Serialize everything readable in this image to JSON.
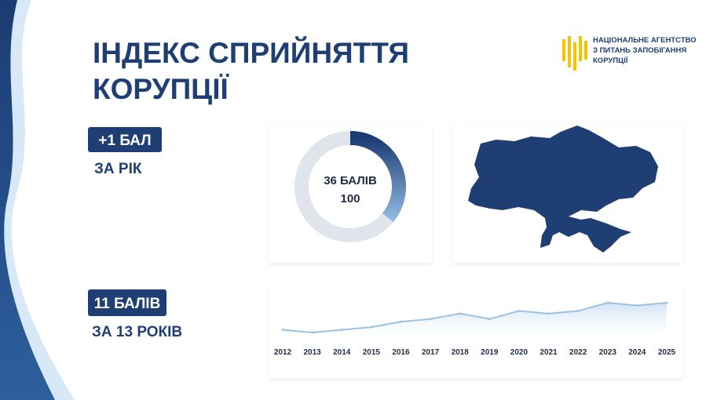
{
  "title_lines": [
    "ІНДЕКС СПРИЙНЯТТЯ",
    "КОРУПЦІЇ"
  ],
  "logo_lines": [
    "НАЦІОНАЛЬНЕ АГЕНТСТВО",
    "З ПИТАНЬ ЗАПОБІГАННЯ",
    "КОРУПЦІЇ"
  ],
  "stats": [
    {
      "badge": "+1 БАЛ",
      "caption": "ЗА РІК"
    },
    {
      "badge": "11 БАЛІВ",
      "caption": "ЗА 13 РОКІВ"
    }
  ],
  "chart_data": [
    {
      "type": "donut",
      "value": 36,
      "value_label": "36 БАЛІВ",
      "total": 100,
      "color": "#1f4f8f",
      "track_color": "#dfe5ea"
    },
    {
      "type": "line",
      "x": [
        2012,
        2013,
        2014,
        2015,
        2016,
        2017,
        2018,
        2019,
        2020,
        2021,
        2022,
        2023,
        2024,
        2025
      ],
      "values": [
        26,
        25,
        26,
        27,
        29,
        30,
        32,
        30,
        33,
        32,
        33,
        36,
        35,
        36
      ],
      "xlim": [
        2012,
        2025
      ],
      "xticks": [
        2012,
        2013,
        2014,
        2015,
        2016,
        2017,
        2018,
        2019,
        2020,
        2021,
        2022,
        2023,
        2024,
        2025
      ],
      "color": "#9cc2e3"
    }
  ]
}
